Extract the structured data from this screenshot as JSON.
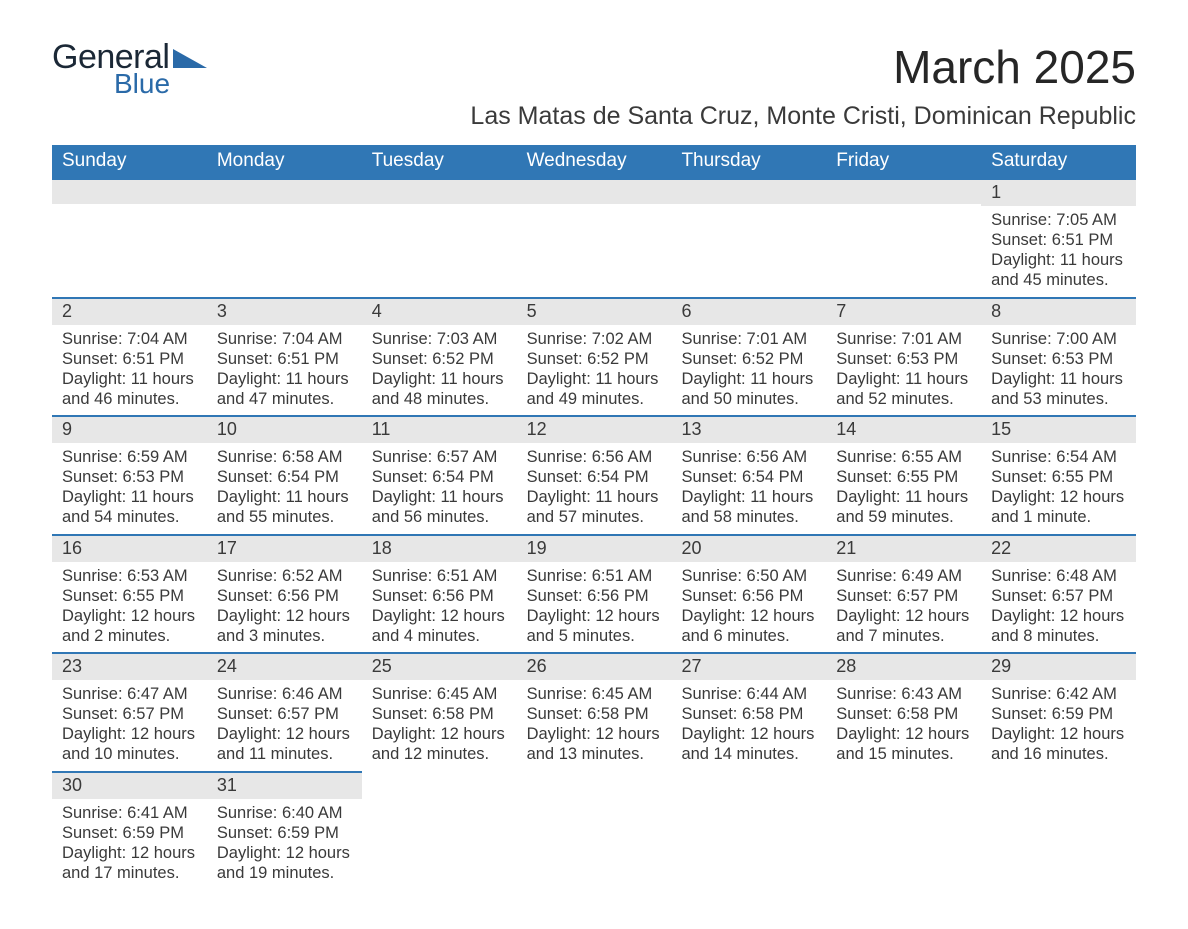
{
  "logo": {
    "text1": "General",
    "text2": "Blue",
    "triangle_color": "#2a6aa8",
    "text1_color": "#1b2836"
  },
  "title": "March 2025",
  "location": "Las Matas de Santa Cruz, Monte Cristi, Dominican Republic",
  "colors": {
    "header_bg": "#3077b5",
    "header_fg": "#ffffff",
    "daynum_bg": "#e7e7e7",
    "row_border": "#3077b5",
    "text": "#3a3a3a",
    "page_bg": "#ffffff"
  },
  "weekdays": [
    "Sunday",
    "Monday",
    "Tuesday",
    "Wednesday",
    "Thursday",
    "Friday",
    "Saturday"
  ],
  "weeks": [
    [
      null,
      null,
      null,
      null,
      null,
      null,
      {
        "n": "1",
        "sunrise": "Sunrise: 7:05 AM",
        "sunset": "Sunset: 6:51 PM",
        "day1": "Daylight: 11 hours",
        "day2": "and 45 minutes."
      }
    ],
    [
      {
        "n": "2",
        "sunrise": "Sunrise: 7:04 AM",
        "sunset": "Sunset: 6:51 PM",
        "day1": "Daylight: 11 hours",
        "day2": "and 46 minutes."
      },
      {
        "n": "3",
        "sunrise": "Sunrise: 7:04 AM",
        "sunset": "Sunset: 6:51 PM",
        "day1": "Daylight: 11 hours",
        "day2": "and 47 minutes."
      },
      {
        "n": "4",
        "sunrise": "Sunrise: 7:03 AM",
        "sunset": "Sunset: 6:52 PM",
        "day1": "Daylight: 11 hours",
        "day2": "and 48 minutes."
      },
      {
        "n": "5",
        "sunrise": "Sunrise: 7:02 AM",
        "sunset": "Sunset: 6:52 PM",
        "day1": "Daylight: 11 hours",
        "day2": "and 49 minutes."
      },
      {
        "n": "6",
        "sunrise": "Sunrise: 7:01 AM",
        "sunset": "Sunset: 6:52 PM",
        "day1": "Daylight: 11 hours",
        "day2": "and 50 minutes."
      },
      {
        "n": "7",
        "sunrise": "Sunrise: 7:01 AM",
        "sunset": "Sunset: 6:53 PM",
        "day1": "Daylight: 11 hours",
        "day2": "and 52 minutes."
      },
      {
        "n": "8",
        "sunrise": "Sunrise: 7:00 AM",
        "sunset": "Sunset: 6:53 PM",
        "day1": "Daylight: 11 hours",
        "day2": "and 53 minutes."
      }
    ],
    [
      {
        "n": "9",
        "sunrise": "Sunrise: 6:59 AM",
        "sunset": "Sunset: 6:53 PM",
        "day1": "Daylight: 11 hours",
        "day2": "and 54 minutes."
      },
      {
        "n": "10",
        "sunrise": "Sunrise: 6:58 AM",
        "sunset": "Sunset: 6:54 PM",
        "day1": "Daylight: 11 hours",
        "day2": "and 55 minutes."
      },
      {
        "n": "11",
        "sunrise": "Sunrise: 6:57 AM",
        "sunset": "Sunset: 6:54 PM",
        "day1": "Daylight: 11 hours",
        "day2": "and 56 minutes."
      },
      {
        "n": "12",
        "sunrise": "Sunrise: 6:56 AM",
        "sunset": "Sunset: 6:54 PM",
        "day1": "Daylight: 11 hours",
        "day2": "and 57 minutes."
      },
      {
        "n": "13",
        "sunrise": "Sunrise: 6:56 AM",
        "sunset": "Sunset: 6:54 PM",
        "day1": "Daylight: 11 hours",
        "day2": "and 58 minutes."
      },
      {
        "n": "14",
        "sunrise": "Sunrise: 6:55 AM",
        "sunset": "Sunset: 6:55 PM",
        "day1": "Daylight: 11 hours",
        "day2": "and 59 minutes."
      },
      {
        "n": "15",
        "sunrise": "Sunrise: 6:54 AM",
        "sunset": "Sunset: 6:55 PM",
        "day1": "Daylight: 12 hours",
        "day2": "and 1 minute."
      }
    ],
    [
      {
        "n": "16",
        "sunrise": "Sunrise: 6:53 AM",
        "sunset": "Sunset: 6:55 PM",
        "day1": "Daylight: 12 hours",
        "day2": "and 2 minutes."
      },
      {
        "n": "17",
        "sunrise": "Sunrise: 6:52 AM",
        "sunset": "Sunset: 6:56 PM",
        "day1": "Daylight: 12 hours",
        "day2": "and 3 minutes."
      },
      {
        "n": "18",
        "sunrise": "Sunrise: 6:51 AM",
        "sunset": "Sunset: 6:56 PM",
        "day1": "Daylight: 12 hours",
        "day2": "and 4 minutes."
      },
      {
        "n": "19",
        "sunrise": "Sunrise: 6:51 AM",
        "sunset": "Sunset: 6:56 PM",
        "day1": "Daylight: 12 hours",
        "day2": "and 5 minutes."
      },
      {
        "n": "20",
        "sunrise": "Sunrise: 6:50 AM",
        "sunset": "Sunset: 6:56 PM",
        "day1": "Daylight: 12 hours",
        "day2": "and 6 minutes."
      },
      {
        "n": "21",
        "sunrise": "Sunrise: 6:49 AM",
        "sunset": "Sunset: 6:57 PM",
        "day1": "Daylight: 12 hours",
        "day2": "and 7 minutes."
      },
      {
        "n": "22",
        "sunrise": "Sunrise: 6:48 AM",
        "sunset": "Sunset: 6:57 PM",
        "day1": "Daylight: 12 hours",
        "day2": "and 8 minutes."
      }
    ],
    [
      {
        "n": "23",
        "sunrise": "Sunrise: 6:47 AM",
        "sunset": "Sunset: 6:57 PM",
        "day1": "Daylight: 12 hours",
        "day2": "and 10 minutes."
      },
      {
        "n": "24",
        "sunrise": "Sunrise: 6:46 AM",
        "sunset": "Sunset: 6:57 PM",
        "day1": "Daylight: 12 hours",
        "day2": "and 11 minutes."
      },
      {
        "n": "25",
        "sunrise": "Sunrise: 6:45 AM",
        "sunset": "Sunset: 6:58 PM",
        "day1": "Daylight: 12 hours",
        "day2": "and 12 minutes."
      },
      {
        "n": "26",
        "sunrise": "Sunrise: 6:45 AM",
        "sunset": "Sunset: 6:58 PM",
        "day1": "Daylight: 12 hours",
        "day2": "and 13 minutes."
      },
      {
        "n": "27",
        "sunrise": "Sunrise: 6:44 AM",
        "sunset": "Sunset: 6:58 PM",
        "day1": "Daylight: 12 hours",
        "day2": "and 14 minutes."
      },
      {
        "n": "28",
        "sunrise": "Sunrise: 6:43 AM",
        "sunset": "Sunset: 6:58 PM",
        "day1": "Daylight: 12 hours",
        "day2": "and 15 minutes."
      },
      {
        "n": "29",
        "sunrise": "Sunrise: 6:42 AM",
        "sunset": "Sunset: 6:59 PM",
        "day1": "Daylight: 12 hours",
        "day2": "and 16 minutes."
      }
    ],
    [
      {
        "n": "30",
        "sunrise": "Sunrise: 6:41 AM",
        "sunset": "Sunset: 6:59 PM",
        "day1": "Daylight: 12 hours",
        "day2": "and 17 minutes."
      },
      {
        "n": "31",
        "sunrise": "Sunrise: 6:40 AM",
        "sunset": "Sunset: 6:59 PM",
        "day1": "Daylight: 12 hours",
        "day2": "and 19 minutes."
      },
      null,
      null,
      null,
      null,
      null
    ]
  ]
}
